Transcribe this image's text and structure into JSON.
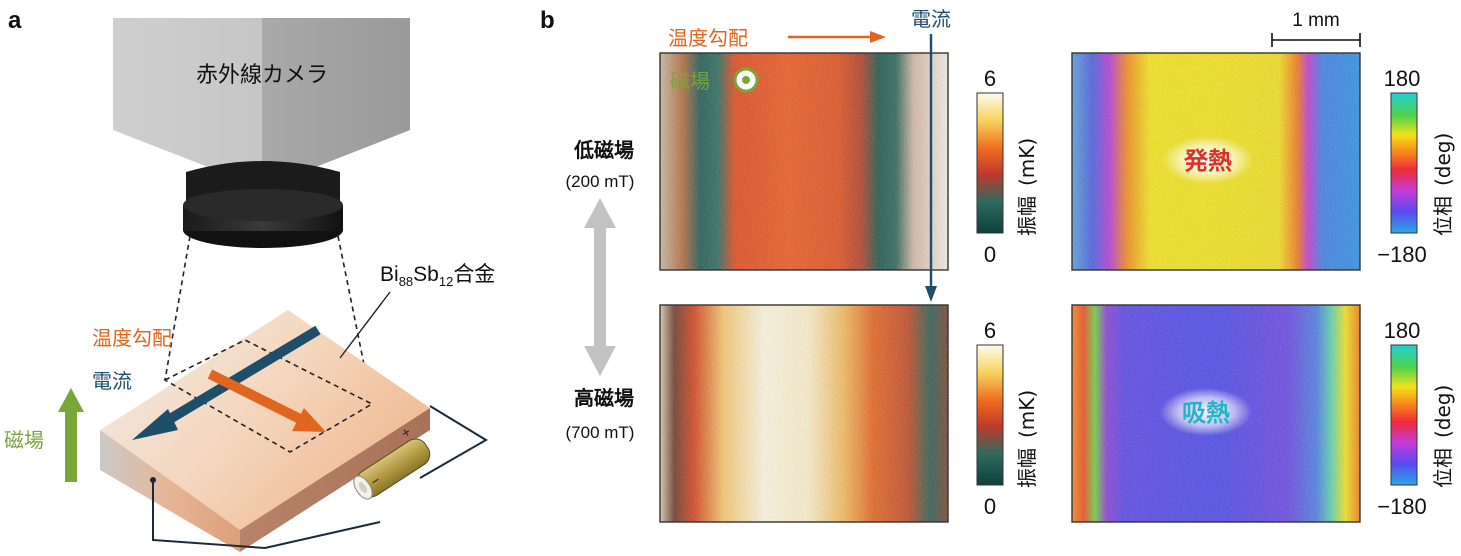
{
  "panel_a": {
    "letter": "a",
    "camera_label": "赤外線カメラ",
    "sample_label_main": "Bi",
    "sample_sub1": "88",
    "sample_mid": "Sb",
    "sample_sub2": "12",
    "sample_suffix": "合金",
    "temp_gradient_label": "温度勾配",
    "current_label": "電流",
    "field_label": "磁場",
    "battery_plus": "+",
    "battery_minus": "−"
  },
  "panel_b": {
    "letter": "b",
    "temp_gradient_label": "温度勾配",
    "current_label": "電流",
    "field_label": "磁場",
    "scale_bar_label": "1 mm",
    "low_field_label": "低磁場",
    "low_field_value": "(200 mT)",
    "high_field_label": "高磁場",
    "high_field_value": "(700 mT)",
    "amp_colorbar": {
      "max": "6",
      "min": "0",
      "title": "振幅",
      "unit": "(mK)"
    },
    "phase_colorbar": {
      "max": "180",
      "min": "−180",
      "title": "位相",
      "unit": "(deg)"
    },
    "heat_release_label": "発熱",
    "heat_absorb_label": "吸熱"
  },
  "colors": {
    "orange": "#e0661f",
    "navy": "#1f4e6b",
    "green": "#7aa53a",
    "red_text": "#d9302c",
    "cyan_text": "#23b5c7"
  }
}
